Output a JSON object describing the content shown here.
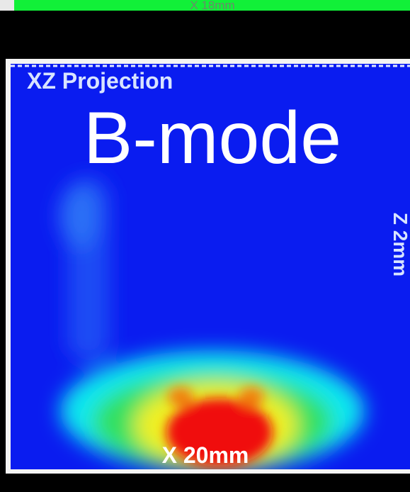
{
  "top_bar": {
    "label": "X 18mm"
  },
  "panel": {
    "title": "XZ Projection",
    "mode": "B-mode",
    "z_label": "Z 2mm",
    "x_label": "X 20mm"
  }
}
